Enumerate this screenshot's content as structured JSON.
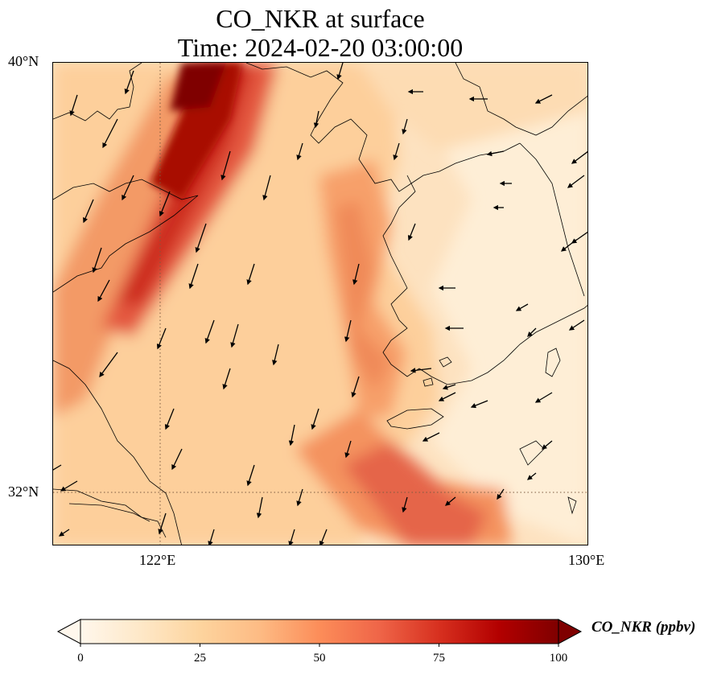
{
  "title": {
    "line1": "CO_NKR at surface",
    "line2": "Time: 2024-02-20 03:00:00"
  },
  "axes": {
    "lat_labels": [
      "40°N",
      "32°N"
    ],
    "lon_labels": [
      "122°E",
      "130°E"
    ],
    "lat_range": [
      31,
      40
    ],
    "lon_range": [
      120,
      130
    ]
  },
  "colorbar": {
    "label": "CO_NKR (ppbv)",
    "ticks": [
      "0",
      "25",
      "50",
      "75",
      "100"
    ],
    "range": [
      0,
      100
    ],
    "extend": "both",
    "colormap": "OrRd",
    "colors": [
      "#fff7ec",
      "#fee8c8",
      "#fdd49e",
      "#fdbb84",
      "#fc8d59",
      "#ef6548",
      "#d7301f",
      "#b30000",
      "#7f0000"
    ]
  },
  "map": {
    "variable": "CO_NKR",
    "level": "surface",
    "gridlines": "dotted",
    "overlay": "wind-vectors",
    "coastlines": true
  }
}
